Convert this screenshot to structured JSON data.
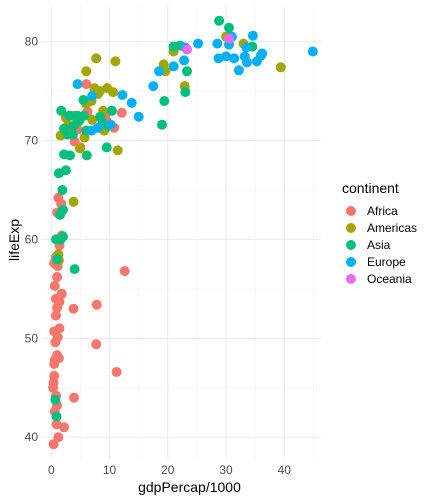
{
  "chart_data": {
    "type": "scatter",
    "xlabel": "gdpPercap/1000",
    "ylabel": "lifeExp",
    "xlim": [
      -1.6,
      46.3
    ],
    "ylim": [
      37.8,
      83.6
    ],
    "x_ticks": [
      0,
      10,
      20,
      30,
      40
    ],
    "y_ticks": [
      40,
      50,
      60,
      70,
      80
    ],
    "grid": true,
    "legend": {
      "title": "continent",
      "placement": "right",
      "entries": [
        "Africa",
        "Americas",
        "Asia",
        "Europe",
        "Oceania"
      ]
    },
    "colors": {
      "Africa": "#F8766D",
      "Americas": "#A3A500",
      "Asia": "#00BF7D",
      "Europe": "#00B0F6",
      "Oceania": "#E76BF3"
    },
    "series": [
      {
        "name": "Africa",
        "points": [
          [
            0.3,
            45.0
          ],
          [
            0.4,
            45.5
          ],
          [
            0.5,
            46.2
          ],
          [
            0.8,
            44.2
          ],
          [
            1.0,
            43.2
          ],
          [
            0.6,
            42.6
          ],
          [
            0.9,
            41.3
          ],
          [
            1.2,
            40.0
          ],
          [
            0.4,
            39.3
          ],
          [
            2.2,
            41.0
          ],
          [
            0.5,
            47.4
          ],
          [
            0.6,
            47.8
          ],
          [
            1.0,
            48.3
          ],
          [
            1.3,
            48.0
          ],
          [
            0.7,
            49.6
          ],
          [
            1.1,
            50.1
          ],
          [
            0.5,
            50.7
          ],
          [
            1.4,
            51.0
          ],
          [
            0.8,
            52.3
          ],
          [
            1.0,
            53.1
          ],
          [
            1.4,
            53.7
          ],
          [
            0.8,
            54.0
          ],
          [
            1.8,
            54.5
          ],
          [
            0.6,
            55.3
          ],
          [
            1.0,
            56.2
          ],
          [
            0.5,
            57.6
          ],
          [
            0.8,
            58.2
          ],
          [
            1.1,
            57.3
          ],
          [
            1.4,
            59.4
          ],
          [
            1.8,
            60.4
          ],
          [
            1.0,
            62.7
          ],
          [
            1.7,
            63.6
          ],
          [
            1.2,
            64.2
          ],
          [
            3.9,
            44.0
          ],
          [
            3.8,
            53.0
          ],
          [
            7.8,
            53.4
          ],
          [
            7.7,
            49.4
          ],
          [
            11.2,
            46.6
          ],
          [
            12.6,
            56.8
          ],
          [
            4.0,
            69.9
          ],
          [
            6.2,
            72.9
          ],
          [
            6.0,
            75.7
          ],
          [
            9.3,
            72.6
          ],
          [
            9.6,
            71.9
          ],
          [
            10.8,
            71.3
          ],
          [
            12.1,
            72.8
          ],
          [
            5.0,
            69.3
          ],
          [
            4.5,
            71.1
          ]
        ]
      },
      {
        "name": "Americas",
        "points": [
          [
            1.2,
            58.5
          ],
          [
            1.3,
            57.9
          ],
          [
            3.8,
            63.8
          ],
          [
            1.6,
            70.5
          ],
          [
            2.9,
            71.5
          ],
          [
            2.5,
            72.3
          ],
          [
            3.8,
            72.5
          ],
          [
            4.5,
            71.8
          ],
          [
            4.8,
            72.4
          ],
          [
            4.9,
            69.2
          ],
          [
            5.7,
            70.3
          ],
          [
            6.0,
            71.0
          ],
          [
            6.0,
            73.7
          ],
          [
            6.9,
            74.0
          ],
          [
            7.0,
            72.1
          ],
          [
            7.4,
            75.3
          ],
          [
            8.0,
            74.7
          ],
          [
            8.9,
            73.0
          ],
          [
            9.1,
            71.0
          ],
          [
            9.6,
            75.3
          ],
          [
            10.6,
            74.9
          ],
          [
            11.0,
            78.0
          ],
          [
            11.4,
            69.0
          ],
          [
            6.0,
            77.0
          ],
          [
            7.7,
            78.3
          ],
          [
            8.3,
            75.0
          ],
          [
            19.3,
            77.7
          ],
          [
            19.6,
            77.0
          ],
          [
            21.0,
            79.0
          ],
          [
            22.9,
            75.5
          ],
          [
            30.0,
            80.5
          ],
          [
            33.0,
            79.8
          ],
          [
            39.4,
            77.4
          ]
        ]
      },
      {
        "name": "Asia",
        "points": [
          [
            0.7,
            43.8
          ],
          [
            0.9,
            42.1
          ],
          [
            1.0,
            58.0
          ],
          [
            0.8,
            60.0
          ],
          [
            1.6,
            60.0
          ],
          [
            2.0,
            60.3
          ],
          [
            1.5,
            62.5
          ],
          [
            2.0,
            63.0
          ],
          [
            1.9,
            65.0
          ],
          [
            1.3,
            66.7
          ],
          [
            4.0,
            57.0
          ],
          [
            2.5,
            67.0
          ],
          [
            2.2,
            68.6
          ],
          [
            3.2,
            68.5
          ],
          [
            2.8,
            70.6
          ],
          [
            3.7,
            70.6
          ],
          [
            2.2,
            71.2
          ],
          [
            1.7,
            73.0
          ],
          [
            3.1,
            72.5
          ],
          [
            3.8,
            71.5
          ],
          [
            4.5,
            72.5
          ],
          [
            4.8,
            72.0
          ],
          [
            5.6,
            72.5
          ],
          [
            6.0,
            71.0
          ],
          [
            6.1,
            68.5
          ],
          [
            5.5,
            74.1
          ],
          [
            8.4,
            72.4
          ],
          [
            8.8,
            71.8
          ],
          [
            9.5,
            69.3
          ],
          [
            9.8,
            71.5
          ],
          [
            10.4,
            73.0
          ],
          [
            19.0,
            71.6
          ],
          [
            19.4,
            74.0
          ],
          [
            21.0,
            79.5
          ],
          [
            22.1,
            79.6
          ],
          [
            23.0,
            74.9
          ],
          [
            23.3,
            77.0
          ],
          [
            28.8,
            82.1
          ],
          [
            30.5,
            81.4
          ],
          [
            34.5,
            79.5
          ],
          [
            36.0,
            78.6
          ]
        ]
      },
      {
        "name": "Europe",
        "points": [
          [
            4.5,
            75.7
          ],
          [
            6.9,
            71.0
          ],
          [
            7.0,
            74.5
          ],
          [
            8.0,
            71.3
          ],
          [
            10.2,
            71.6
          ],
          [
            12.2,
            74.6
          ],
          [
            13.8,
            73.8
          ],
          [
            15.0,
            72.4
          ],
          [
            17.5,
            75.5
          ],
          [
            18.5,
            77.0
          ],
          [
            21.0,
            77.5
          ],
          [
            22.8,
            78.1
          ],
          [
            23.0,
            79.4
          ],
          [
            25.2,
            79.8
          ],
          [
            28.5,
            79.8
          ],
          [
            28.7,
            78.3
          ],
          [
            30.0,
            78.5
          ],
          [
            30.5,
            79.7
          ],
          [
            31.0,
            80.5
          ],
          [
            31.4,
            78.3
          ],
          [
            32.2,
            77.1
          ],
          [
            33.2,
            78.5
          ],
          [
            33.5,
            79.4
          ],
          [
            33.6,
            77.9
          ],
          [
            34.6,
            80.6
          ],
          [
            35.3,
            78.0
          ],
          [
            36.2,
            78.8
          ],
          [
            44.9,
            79.0
          ]
        ]
      },
      {
        "name": "Oceania",
        "points": [
          [
            23.3,
            79.2
          ],
          [
            30.5,
            80.3
          ]
        ]
      }
    ]
  }
}
